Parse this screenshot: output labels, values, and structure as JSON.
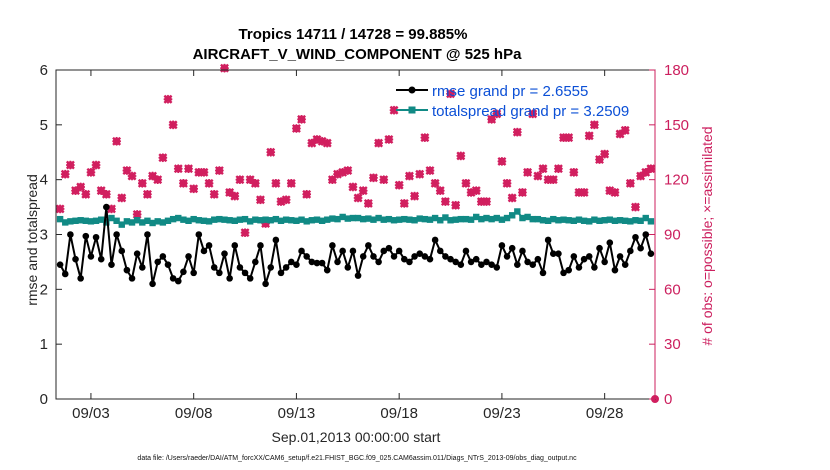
{
  "chart_data": {
    "type": "line",
    "title": "Tropics 14711 / 14728 = 99.885%",
    "subtitle": "AIRCRAFT_V_WIND_COMPONENT @ 525 hPa",
    "xlabel": "Sep.01,2013 00:00:00 start",
    "ylabel": "rmse and totalspread",
    "ylabel_right": "# of obs: o=possible; ×=assimilated",
    "footer": "data file: /Users/raeder/DAI/ATM_forcXX/CAM6_setup/f.e21.FHIST_BGC.f09_025.CAM6assim.011/Diags_NTrS_2013-09/obs_diag_output.nc",
    "x_tick_labels": [
      "09/03",
      "09/08",
      "09/13",
      "09/18",
      "09/23",
      "09/28"
    ],
    "x_tick_values": [
      3,
      8,
      13,
      18,
      23,
      28
    ],
    "xlim": [
      1.3,
      30.45
    ],
    "ylim": [
      0,
      6
    ],
    "y_ticks": [
      "0",
      "1",
      "2",
      "3",
      "4",
      "5",
      "6"
    ],
    "ylim_right": [
      0,
      180
    ],
    "y_ticks_right": [
      "0",
      "30",
      "60",
      "90",
      "120",
      "150",
      "180"
    ],
    "x": [
      1.5,
      1.75,
      2.0,
      2.25,
      2.5,
      2.75,
      3.0,
      3.25,
      3.5,
      3.75,
      4.0,
      4.25,
      4.5,
      4.75,
      5.0,
      5.25,
      5.5,
      5.75,
      6.0,
      6.25,
      6.5,
      6.75,
      7.0,
      7.25,
      7.5,
      7.75,
      8.0,
      8.25,
      8.5,
      8.75,
      9.0,
      9.25,
      9.5,
      9.75,
      10.0,
      10.25,
      10.5,
      10.75,
      11.0,
      11.25,
      11.5,
      11.75,
      12.0,
      12.25,
      12.5,
      12.75,
      13.0,
      13.25,
      13.5,
      13.75,
      14.0,
      14.25,
      14.5,
      14.75,
      15.0,
      15.25,
      15.5,
      15.75,
      16.0,
      16.25,
      16.5,
      16.75,
      17.0,
      17.25,
      17.5,
      17.75,
      18.0,
      18.25,
      18.5,
      18.75,
      19.0,
      19.25,
      19.5,
      19.75,
      20.0,
      20.25,
      20.5,
      20.75,
      21.0,
      21.25,
      21.5,
      21.75,
      22.0,
      22.25,
      22.5,
      22.75,
      23.0,
      23.25,
      23.5,
      23.75,
      24.0,
      24.25,
      24.5,
      24.75,
      25.0,
      25.25,
      25.5,
      25.75,
      26.0,
      26.25,
      26.5,
      26.75,
      27.0,
      27.25,
      27.5,
      27.75,
      28.0,
      28.25,
      28.5,
      28.75,
      29.0,
      29.25,
      29.5,
      29.75,
      30.0,
      30.25
    ],
    "series": [
      {
        "name": "rmse",
        "legend": "rmse grand pr = 2.6555",
        "color": "#000000",
        "values": [
          2.45,
          2.28,
          3.0,
          2.55,
          2.2,
          2.97,
          2.6,
          2.95,
          2.55,
          3.5,
          2.45,
          3.0,
          2.7,
          2.35,
          2.2,
          2.65,
          2.4,
          3.0,
          2.1,
          2.5,
          2.6,
          2.45,
          2.2,
          2.15,
          2.32,
          2.6,
          2.3,
          3.0,
          2.7,
          2.8,
          2.4,
          2.3,
          2.65,
          2.2,
          2.8,
          2.4,
          2.3,
          2.2,
          2.5,
          2.8,
          2.1,
          2.4,
          2.9,
          2.3,
          2.4,
          2.5,
          2.45,
          2.7,
          2.6,
          2.5,
          2.48,
          2.48,
          2.35,
          2.8,
          2.5,
          2.7,
          2.4,
          2.7,
          2.25,
          2.6,
          2.8,
          2.6,
          2.5,
          2.7,
          2.75,
          2.6,
          2.7,
          2.55,
          2.5,
          2.6,
          2.65,
          2.6,
          2.55,
          2.9,
          2.7,
          2.6,
          2.55,
          2.5,
          2.45,
          2.7,
          2.5,
          2.55,
          2.45,
          2.5,
          2.45,
          2.4,
          2.8,
          2.6,
          2.75,
          2.45,
          2.7,
          2.5,
          2.45,
          2.55,
          2.3,
          2.9,
          2.65,
          2.65,
          2.3,
          2.35,
          2.6,
          2.4,
          2.55,
          2.6,
          2.4,
          2.75,
          2.5,
          2.85,
          2.35,
          2.6,
          2.45,
          2.7,
          2.95,
          2.75,
          3.0,
          2.65
        ]
      },
      {
        "name": "totalspread",
        "legend": "totalspread grand pr = 3.2509",
        "color": "#118a85",
        "values": [
          3.28,
          3.22,
          3.24,
          3.25,
          3.26,
          3.25,
          3.24,
          3.25,
          3.27,
          3.22,
          3.3,
          3.25,
          3.18,
          3.24,
          3.22,
          3.26,
          3.22,
          3.25,
          3.21,
          3.24,
          3.22,
          3.25,
          3.28,
          3.3,
          3.27,
          3.25,
          3.28,
          3.26,
          3.25,
          3.24,
          3.27,
          3.28,
          3.27,
          3.26,
          3.25,
          3.27,
          3.28,
          3.24,
          3.27,
          3.26,
          3.27,
          3.26,
          3.28,
          3.25,
          3.27,
          3.26,
          3.25,
          3.27,
          3.24,
          3.26,
          3.27,
          3.25,
          3.27,
          3.29,
          3.28,
          3.32,
          3.29,
          3.3,
          3.3,
          3.28,
          3.29,
          3.27,
          3.3,
          3.27,
          3.28,
          3.26,
          3.27,
          3.28,
          3.27,
          3.26,
          3.29,
          3.28,
          3.27,
          3.3,
          3.26,
          3.31,
          3.26,
          3.27,
          3.28,
          3.28,
          3.27,
          3.32,
          3.28,
          3.3,
          3.28,
          3.3,
          3.27,
          3.3,
          3.35,
          3.42,
          3.3,
          3.32,
          3.28,
          3.28,
          3.26,
          3.25,
          3.28,
          3.26,
          3.27,
          3.26,
          3.25,
          3.27,
          3.25,
          3.24,
          3.27,
          3.25,
          3.26,
          3.27,
          3.25,
          3.26,
          3.25,
          3.24,
          3.26,
          3.25,
          3.3,
          3.24
        ]
      }
    ],
    "obs_possible": [
      104,
      123,
      128,
      114,
      116,
      112,
      124,
      128,
      114,
      112,
      104,
      141,
      110,
      125,
      122,
      101,
      118,
      112,
      122,
      120,
      132,
      164,
      150,
      126,
      118,
      126,
      115,
      124,
      124,
      118,
      112,
      125,
      181,
      113,
      111,
      120,
      91,
      120,
      118,
      109,
      96,
      135,
      118,
      108,
      109,
      118,
      148,
      153,
      112,
      140,
      142,
      141,
      140,
      120,
      123,
      124,
      125,
      116,
      110,
      114,
      107,
      121,
      140,
      120,
      142,
      158,
      117,
      107,
      122,
      111,
      123,
      143,
      125,
      118,
      114,
      108,
      167,
      106,
      133,
      118,
      113,
      114,
      108,
      108,
      153,
      156,
      130,
      118,
      110,
      146,
      113,
      124,
      156,
      122,
      126,
      120,
      120,
      126,
      143,
      143,
      124,
      113,
      113,
      144,
      150,
      131,
      134,
      114,
      113,
      145,
      147,
      118,
      105,
      122,
      124,
      126
    ],
    "obs_assimilated": [
      104,
      123,
      128,
      114,
      116,
      112,
      124,
      128,
      114,
      112,
      104,
      141,
      110,
      125,
      122,
      101,
      118,
      112,
      122,
      120,
      132,
      164,
      150,
      126,
      118,
      126,
      115,
      124,
      124,
      118,
      112,
      125,
      181,
      113,
      111,
      120,
      91,
      120,
      118,
      109,
      96,
      135,
      118,
      108,
      109,
      118,
      148,
      153,
      112,
      140,
      142,
      141,
      140,
      120,
      123,
      124,
      125,
      116,
      110,
      114,
      107,
      121,
      140,
      120,
      142,
      158,
      117,
      107,
      122,
      111,
      123,
      143,
      125,
      118,
      114,
      108,
      167,
      106,
      133,
      118,
      113,
      114,
      108,
      108,
      153,
      156,
      130,
      118,
      110,
      146,
      113,
      124,
      156,
      122,
      126,
      120,
      120,
      126,
      143,
      143,
      124,
      113,
      113,
      144,
      150,
      131,
      134,
      114,
      113,
      145,
      147,
      118,
      105,
      122,
      124,
      126
    ],
    "last_point_x": 30.45,
    "last_point_obs": 0
  }
}
